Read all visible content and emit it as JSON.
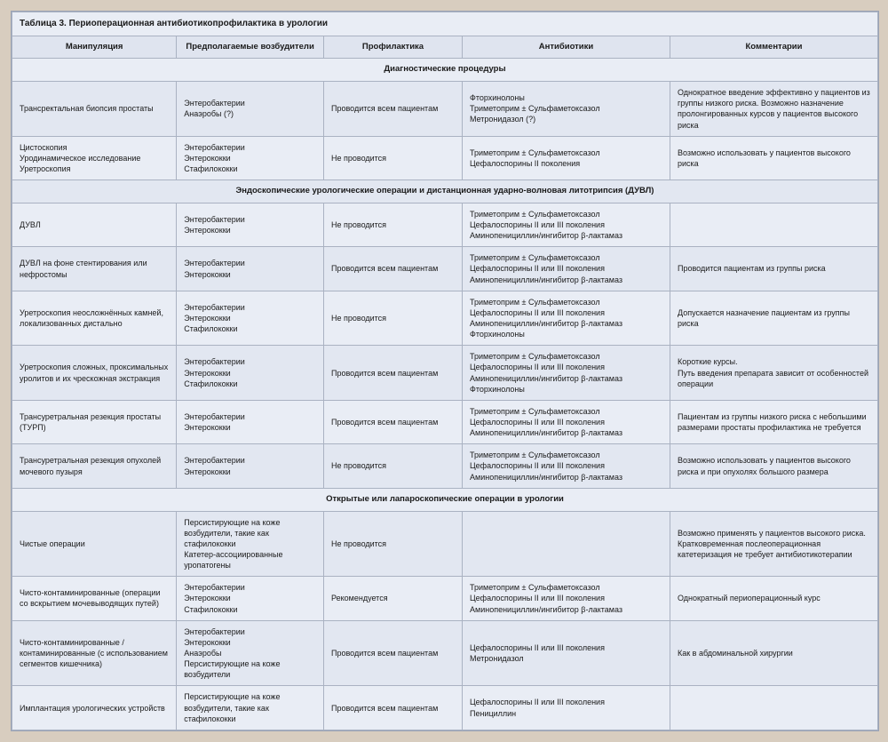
{
  "table": {
    "title": "Таблица 3. Периоперационная антибиотикопрофилактика в урологии",
    "columns": [
      "Манипуляция",
      "Предполагаемые возбудители",
      "Профилактика",
      "Антибиотики",
      "Комментарии"
    ],
    "sections": [
      {
        "heading": "Диагностические процедуры",
        "rows": [
          {
            "c1": "Трансректальная биопсия простаты",
            "c2": "Энтеробактерии\nАнаэробы (?)",
            "c3": "Проводится всем пациентам",
            "c4": "Фторхинолоны\nТриметоприм ± Сульфаметоксазол\nМетронидазол (?)",
            "c5": "Однократное введение эффективно у пациентов из группы низкого риска. Возможно назначение пролонгированных курсов у пациентов высокого риска"
          },
          {
            "c1": "Цистоскопия\nУродинамическое исследование\nУретроскопия",
            "c2": "Энтеробактерии\nЭнтерококки\nСтафилококки",
            "c3": "Не проводится",
            "c4": "Триметоприм ± Сульфаметоксазол\nЦефалоспорины II поколения",
            "c5": "Возможно использовать у пациентов высокого риска"
          }
        ]
      },
      {
        "heading": "Эндоскопические урологические операции и дистанционная ударно-волновая литотрипсия (ДУВЛ)",
        "rows": [
          {
            "c1": "ДУВЛ",
            "c2": "Энтеробактерии\nЭнтерококки",
            "c3": "Не проводится",
            "c4": "Триметоприм ± Сульфаметоксазол\nЦефалоспорины II или III поколения\nАминопенициллин/ингибитор β-лактамаз",
            "c5": ""
          },
          {
            "c1": "ДУВЛ на фоне стентирования или нефростомы",
            "c2": "Энтеробактерии\nЭнтерококки",
            "c3": "Проводится всем пациентам",
            "c4": "Триметоприм ± Сульфаметоксазол\nЦефалоспорины II или III поколения\nАминопенициллин/ингибитор β-лактамаз",
            "c5": "Проводится пациентам из группы риска"
          },
          {
            "c1": "Уретроскопия неосложнённых камней, локализованных дистально",
            "c2": "Энтеробактерии\nЭнтерококки\nСтафилококки",
            "c3": "Не проводится",
            "c4": "Триметоприм ± Сульфаметоксазол\nЦефалоспорины II или III поколения\nАминопенициллин/ингибитор β-лактамаз\nФторхинолоны",
            "c5": "Допускается назначение пациентам из группы риска"
          },
          {
            "c1": "Уретроскопия сложных, проксимальных уролитов и их чрескожная экстракция",
            "c2": "Энтеробактерии\nЭнтерококки\nСтафилококки",
            "c3": "Проводится всем пациентам",
            "c4": "Триметоприм ± Сульфаметоксазол\nЦефалоспорины II или III поколения\nАминопенициллин/ингибитор β-лактамаз\nФторхинолоны",
            "c5": "Короткие курсы.\nПуть введения препарата зависит от особенностей операции"
          },
          {
            "c1": "Трансуретральная резекция простаты (ТУРП)",
            "c2": "Энтеробактерии\nЭнтерококки",
            "c3": "Проводится всем пациентам",
            "c4": "Триметоприм ± Сульфаметоксазол\nЦефалоспорины II или III поколения\nАминопенициллин/ингибитор β-лактамаз",
            "c5": "Пациентам из группы низкого риска с небольшими размерами простаты профилактика не требуется"
          },
          {
            "c1": "Трансуретральная резекция опухолей мочевого пузыря",
            "c2": "Энтеробактерии\nЭнтерококки",
            "c3": "Не проводится",
            "c4": "Триметоприм ± Сульфаметоксазол\nЦефалоспорины II или III поколения\nАминопенициллин/ингибитор β-лактамаз",
            "c5": "Возможно использовать у пациентов высокого риска и при опухолях большого размера"
          }
        ]
      },
      {
        "heading": "Открытые или лапароскопические операции в урологии",
        "rows": [
          {
            "c1": "Чистые операции",
            "c2": "Персистирующие на коже возбудители, такие как стафилококки\nКатетер-ассоциированные уропатогены",
            "c3": "Не проводится",
            "c4": "",
            "c5": "Возможно применять у пациентов высокого риска. Кратковременная послеоперационная катетеризация не требует антибиотикотерапии"
          },
          {
            "c1": "Чисто-контаминированные (операции со вскрытием мочевыводящих путей)",
            "c2": "Энтеробактерии\nЭнтерококки\nСтафилококки",
            "c3": "Рекомендуется",
            "c4": "Триметоприм ± Сульфаметоксазол\nЦефалоспорины II или III поколения\nАминопенициллин/ингибитор β-лактамаз",
            "c5": "Однократный периоперационный курс"
          },
          {
            "c1": "Чисто-контаминированные / контаминированные (с использованием сегментов кишечника)",
            "c2": "Энтеробактерии\nЭнтерококки\nАнаэробы\nПерсистирующие на коже возбудители",
            "c3": "Проводится всем пациентам",
            "c4": "Цефалоспорины II или III поколения\nМетронидазол",
            "c5": "Как в абдоминальной хирургии"
          },
          {
            "c1": "Имплантация урологических устройств",
            "c2": "Персистирующие на коже возбудители, такие как стафилококки",
            "c3": "Проводится всем пациентам",
            "c4": "Цефалоспорины II или III поколения\nПенициллин",
            "c5": ""
          }
        ]
      }
    ]
  }
}
